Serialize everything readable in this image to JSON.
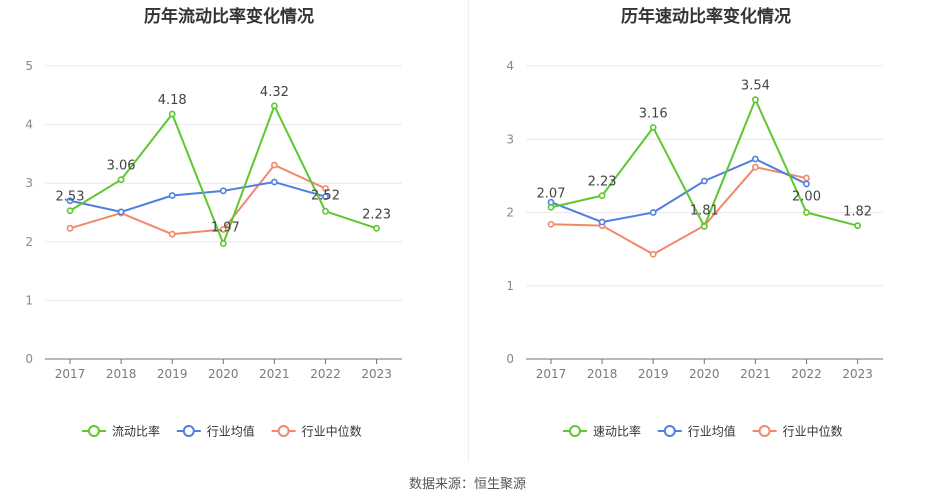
{
  "chart_data": [
    {
      "type": "line",
      "title": "历年流动比率变化情况",
      "categories": [
        "2017",
        "2018",
        "2019",
        "2020",
        "2021",
        "2022",
        "2023"
      ],
      "ylim": [
        0,
        5
      ],
      "yticks": [
        "0",
        "1",
        "2",
        "3",
        "4",
        "5"
      ],
      "grid": true,
      "legend_position": "bottom",
      "series": [
        {
          "name": "流动比率",
          "color": "#5ec72f",
          "values": [
            2.53,
            3.06,
            4.18,
            1.97,
            4.32,
            2.52,
            2.23
          ],
          "labels": [
            "2.53",
            "3.06",
            "4.18",
            "1.97",
            "4.32",
            "2.52",
            "2.23"
          ]
        },
        {
          "name": "行业均值",
          "color": "#4f7fe0",
          "values": [
            2.7,
            2.51,
            2.79,
            2.87,
            3.02,
            2.77,
            null
          ]
        },
        {
          "name": "行业中位数",
          "color": "#f2886a",
          "values": [
            2.23,
            2.49,
            2.13,
            2.21,
            3.31,
            2.91,
            null
          ]
        }
      ]
    },
    {
      "type": "line",
      "title": "历年速动比率变化情况",
      "categories": [
        "2017",
        "2018",
        "2019",
        "2020",
        "2021",
        "2022",
        "2023"
      ],
      "ylim": [
        0,
        4
      ],
      "yticks": [
        "0",
        "1",
        "2",
        "3",
        "4"
      ],
      "grid": true,
      "legend_position": "bottom",
      "series": [
        {
          "name": "速动比率",
          "color": "#5ec72f",
          "values": [
            2.07,
            2.23,
            3.16,
            1.81,
            3.54,
            2.0,
            1.82
          ],
          "labels": [
            "2.07",
            "2.23",
            "3.16",
            "1.81",
            "3.54",
            "2.00",
            "1.82"
          ]
        },
        {
          "name": "行业均值",
          "color": "#4f7fe0",
          "values": [
            2.14,
            1.87,
            2.0,
            2.43,
            2.73,
            2.39,
            null
          ]
        },
        {
          "name": "行业中位数",
          "color": "#f2886a",
          "values": [
            1.84,
            1.82,
            1.43,
            1.82,
            2.62,
            2.47,
            null
          ]
        }
      ]
    }
  ],
  "source": "数据来源：恒生聚源"
}
